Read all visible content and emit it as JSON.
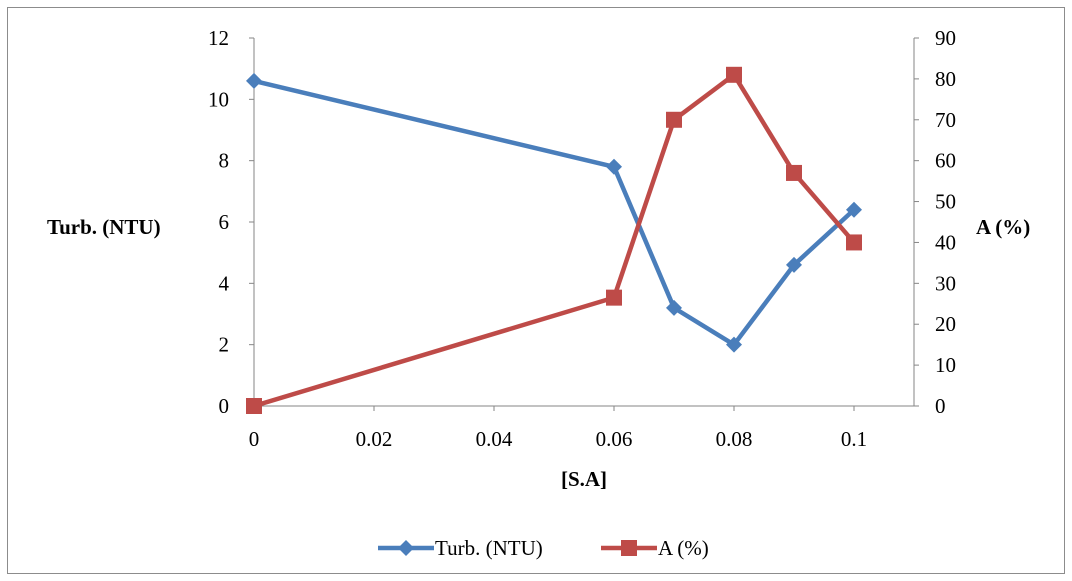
{
  "chart_data": {
    "type": "line",
    "title": "",
    "xlabel": "[S.A]",
    "ylabel_left": "Turb. (NTU)",
    "ylabel_right": "A (%)",
    "x": [
      0,
      0.06,
      0.07,
      0.08,
      0.09,
      0.1
    ],
    "xlim": [
      0,
      0.11
    ],
    "x_ticks": [
      0,
      0.02,
      0.04,
      0.06,
      0.08,
      0.1
    ],
    "x_tick_labels": [
      "0",
      "0.02",
      "0.04",
      "0.06",
      "0.08",
      "0.1"
    ],
    "ylim_left": [
      0,
      12
    ],
    "y_left_ticks": [
      0,
      2,
      4,
      6,
      8,
      10,
      12
    ],
    "y_left_tick_labels": [
      "0",
      "2",
      "4",
      "6",
      "8",
      "10",
      "12"
    ],
    "ylim_right": [
      0,
      90
    ],
    "y_right_ticks": [
      0,
      10,
      20,
      30,
      40,
      50,
      60,
      70,
      80,
      90
    ],
    "y_right_tick_labels": [
      "0",
      "10",
      "20",
      "30",
      "40",
      "50",
      "60",
      "70",
      "80",
      "90"
    ],
    "grid": false,
    "legend_position": "bottom",
    "series": [
      {
        "name": "Turb. (NTU)",
        "axis": "left",
        "marker": "diamond",
        "color": "#4a7ebb",
        "values": [
          10.6,
          7.8,
          3.2,
          2.0,
          4.6,
          6.4
        ]
      },
      {
        "name": "A (%)",
        "axis": "right",
        "marker": "square",
        "color": "#be4b48",
        "values": [
          0,
          26.5,
          70,
          81,
          57,
          40
        ]
      }
    ]
  }
}
